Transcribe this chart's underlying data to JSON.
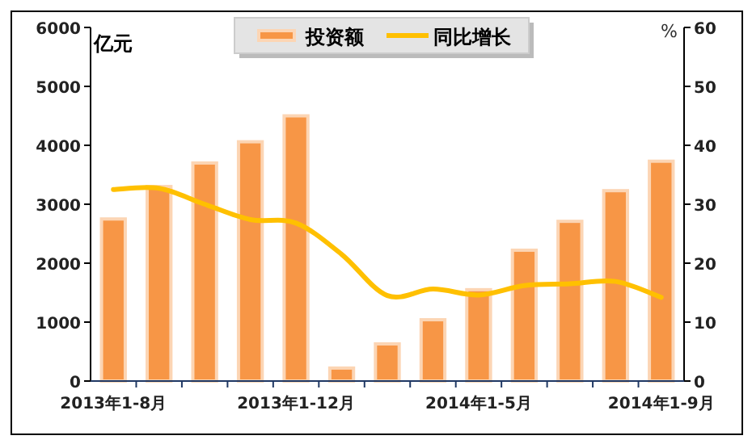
{
  "chart_data": {
    "type": "bar",
    "ylabel": "亿元",
    "y2label": "%",
    "categories": [
      "2013年1-8月",
      null,
      null,
      null,
      "2013年1-12月",
      null,
      null,
      null,
      "2014年1-5月",
      null,
      null,
      null,
      "2014年1-9月"
    ],
    "series": [
      {
        "name": "投资额",
        "color": "#f79646",
        "values": [
          2750,
          3300,
          3700,
          4060,
          4500,
          220,
          630,
          1040,
          1550,
          2220,
          2710,
          3230,
          3730
        ]
      },
      {
        "name": "同比增长",
        "type": "line",
        "axis": "y2",
        "color": "#ffc000",
        "values": [
          32.5,
          32.7,
          30,
          27.4,
          26.8,
          21.5,
          14.5,
          15.6,
          14.6,
          16.2,
          16.5,
          16.9,
          14.2
        ]
      }
    ],
    "ylim": [
      0,
      6000
    ],
    "yticks": [
      0,
      1000,
      2000,
      3000,
      4000,
      5000,
      6000
    ],
    "y2lim": [
      0,
      60
    ],
    "y2ticks": [
      0,
      10,
      20,
      30,
      40,
      50,
      60
    ],
    "legend": "top",
    "grid": false
  }
}
